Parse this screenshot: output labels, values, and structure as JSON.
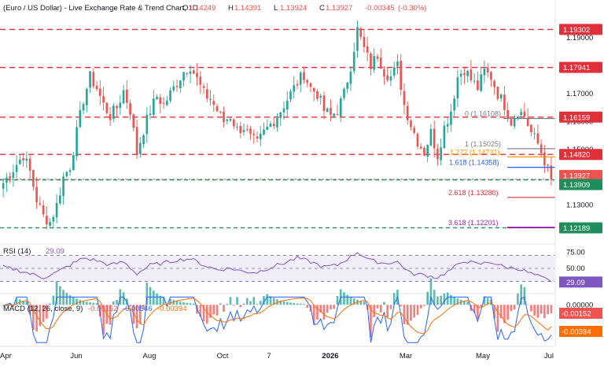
{
  "header": {
    "title": "(Euro / US Dollar) - Live Exchange Rate & Trend Chart, 1D",
    "ohlc": [
      {
        "key": "O",
        "value": "1.14249"
      },
      {
        "key": "H",
        "value": "1.14391"
      },
      {
        "key": "L",
        "value": "1.13924"
      },
      {
        "key": "C",
        "value": "1.13927"
      }
    ],
    "change": "-0.00345",
    "change_pct": "(-0.30%)"
  },
  "colors": {
    "up": "#26a69a",
    "down": "#ef5350",
    "resistance": "#e0313b",
    "support": "#1e8f5a",
    "rsi": "#7e57c2",
    "macd_line": "#2962ff",
    "signal_line": "#ff6d00",
    "fib_blue": "#2962ff",
    "fib_orange": "#ff9800",
    "fib_red": "#e0313b",
    "fib_purple": "#9c27b0"
  },
  "chart_data": [
    {
      "type": "candlestick",
      "title": "(Euro / US Dollar) - Live Exchange Rate & Trend Chart, 1D",
      "ylim": [
        1.1175,
        1.1985
      ],
      "y_ticks": [
        1.13,
        1.15,
        1.16,
        1.17,
        1.19
      ],
      "x_labels": [
        "Apr",
        "Jun",
        "Aug",
        "Oct",
        "7",
        "2026",
        "Mar",
        "May",
        "Jul"
      ],
      "horizontal_levels": [
        {
          "value": 1.19302,
          "label": "1.19302",
          "style": "resistance"
        },
        {
          "value": 1.17941,
          "label": "1.17941",
          "style": "resistance"
        },
        {
          "value": 1.16159,
          "label": "1.16159",
          "style": "resistance"
        },
        {
          "value": 1.1482,
          "label": "1.14820",
          "style": "resistance"
        },
        {
          "value": 1.13927,
          "label": "1.13927",
          "style": "current"
        },
        {
          "value": 1.13909,
          "label": "1.13909",
          "style": "support"
        },
        {
          "value": 1.12189,
          "label": "1.12189",
          "style": "support"
        }
      ],
      "fibonacci": [
        {
          "ratio": "0",
          "value": "1.16108",
          "y": 1.16108,
          "color": "fib_gray"
        },
        {
          "ratio": "1",
          "value": "1.15025",
          "y": 1.15025,
          "color": "fib_gray"
        },
        {
          "ratio": "1.272",
          "value": "1.14731",
          "y": 1.14731,
          "color": "fib_orange"
        },
        {
          "ratio": "1.618",
          "value": "1.14358",
          "y": 1.14358,
          "color": "fib_blue"
        },
        {
          "ratio": "2.618",
          "value": "1.13280",
          "y": 1.1328,
          "color": "fib_red"
        },
        {
          "ratio": "3.618",
          "value": "1.12201",
          "y": 1.12201,
          "color": "fib_purple"
        }
      ],
      "price_path": [
        [
          0,
          1.138
        ],
        [
          3,
          1.143
        ],
        [
          6,
          1.148
        ],
        [
          8,
          1.142
        ],
        [
          10,
          1.132
        ],
        [
          12,
          1.126
        ],
        [
          14,
          1.124
        ],
        [
          16,
          1.13
        ],
        [
          18,
          1.14
        ],
        [
          20,
          1.144
        ],
        [
          22,
          1.156
        ],
        [
          24,
          1.168
        ],
        [
          26,
          1.176
        ],
        [
          28,
          1.172
        ],
        [
          30,
          1.166
        ],
        [
          32,
          1.162
        ],
        [
          34,
          1.165
        ],
        [
          36,
          1.171
        ],
        [
          38,
          1.164
        ],
        [
          40,
          1.149
        ],
        [
          42,
          1.157
        ],
        [
          44,
          1.164
        ],
        [
          46,
          1.169
        ],
        [
          48,
          1.166
        ],
        [
          50,
          1.17
        ],
        [
          52,
          1.174
        ],
        [
          54,
          1.178
        ],
        [
          56,
          1.18
        ],
        [
          58,
          1.175
        ],
        [
          60,
          1.17
        ],
        [
          62,
          1.168
        ],
        [
          64,
          1.164
        ],
        [
          66,
          1.16
        ],
        [
          68,
          1.162
        ],
        [
          70,
          1.157
        ],
        [
          72,
          1.158
        ],
        [
          74,
          1.154
        ],
        [
          76,
          1.152
        ],
        [
          78,
          1.156
        ],
        [
          80,
          1.159
        ],
        [
          82,
          1.162
        ],
        [
          84,
          1.166
        ],
        [
          86,
          1.17
        ],
        [
          88,
          1.174
        ],
        [
          90,
          1.177
        ],
        [
          92,
          1.172
        ],
        [
          94,
          1.17
        ],
        [
          96,
          1.164
        ],
        [
          98,
          1.162
        ],
        [
          100,
          1.164
        ],
        [
          102,
          1.17
        ],
        [
          104,
          1.18
        ],
        [
          106,
          1.193
        ],
        [
          108,
          1.186
        ],
        [
          110,
          1.18
        ],
        [
          112,
          1.184
        ],
        [
          114,
          1.178
        ],
        [
          116,
          1.176
        ],
        [
          118,
          1.18
        ],
        [
          120,
          1.166
        ],
        [
          122,
          1.159
        ],
        [
          124,
          1.153
        ],
        [
          126,
          1.149
        ],
        [
          128,
          1.156
        ],
        [
          130,
          1.148
        ],
        [
          132,
          1.158
        ],
        [
          134,
          1.164
        ],
        [
          136,
          1.176
        ],
        [
          138,
          1.179
        ],
        [
          140,
          1.175
        ],
        [
          142,
          1.172
        ],
        [
          144,
          1.178
        ],
        [
          146,
          1.176
        ],
        [
          148,
          1.17
        ],
        [
          150,
          1.166
        ],
        [
          152,
          1.16
        ],
        [
          154,
          1.164
        ],
        [
          156,
          1.162
        ],
        [
          158,
          1.156
        ],
        [
          160,
          1.152
        ],
        [
          162,
          1.146
        ],
        [
          164,
          1.1393
        ]
      ]
    },
    {
      "type": "line",
      "title": "RSI (14)",
      "current": "29.09",
      "ylim": [
        15,
        85
      ],
      "y_ticks": [
        75,
        50,
        25
      ],
      "band": [
        30,
        70
      ],
      "path": [
        [
          0,
          52
        ],
        [
          4,
          48
        ],
        [
          8,
          42
        ],
        [
          12,
          36
        ],
        [
          16,
          44
        ],
        [
          20,
          55
        ],
        [
          24,
          66
        ],
        [
          28,
          62
        ],
        [
          32,
          55
        ],
        [
          36,
          60
        ],
        [
          40,
          42
        ],
        [
          44,
          55
        ],
        [
          48,
          58
        ],
        [
          52,
          63
        ],
        [
          56,
          65
        ],
        [
          60,
          55
        ],
        [
          64,
          48
        ],
        [
          68,
          50
        ],
        [
          72,
          45
        ],
        [
          76,
          44
        ],
        [
          80,
          52
        ],
        [
          84,
          58
        ],
        [
          88,
          66
        ],
        [
          92,
          60
        ],
        [
          96,
          52
        ],
        [
          100,
          55
        ],
        [
          104,
          68
        ],
        [
          106,
          75
        ],
        [
          110,
          62
        ],
        [
          114,
          58
        ],
        [
          118,
          60
        ],
        [
          122,
          42
        ],
        [
          126,
          40
        ],
        [
          130,
          36
        ],
        [
          134,
          48
        ],
        [
          138,
          62
        ],
        [
          142,
          56
        ],
        [
          146,
          60
        ],
        [
          150,
          52
        ],
        [
          154,
          50
        ],
        [
          158,
          42
        ],
        [
          162,
          34
        ],
        [
          164,
          29.09
        ]
      ]
    },
    {
      "type": "line",
      "title": "MACD (12, 26, close, 9)",
      "legend_values": [
        "-0.00152",
        "-0.00546",
        "-0.00394"
      ],
      "right_labels": [
        "0.00000",
        "-0.00152",
        "-0.00394"
      ],
      "ylim": [
        -0.0072,
        0.0016
      ]
    }
  ],
  "axis": {
    "y_labels": [
      "1.19000",
      "1.17000",
      "1.16000",
      "1.15000",
      "1.13000"
    ],
    "x_labels": [
      "Apr",
      "Jun",
      "Aug",
      "Oct",
      "7",
      "2026",
      "Mar",
      "May",
      "Jul"
    ]
  },
  "rsi": {
    "label": "RSI (14)",
    "value": "29.09",
    "ticks": [
      "75.00",
      "50.00",
      "25.00"
    ]
  },
  "macd": {
    "label": "MACD (12, 26, close, 9)",
    "legend_values": [
      "-0.00152",
      "-0.00546",
      "-0.00394"
    ],
    "ticks": [
      "0.00000",
      "-0.00152",
      "-0.00394"
    ]
  }
}
